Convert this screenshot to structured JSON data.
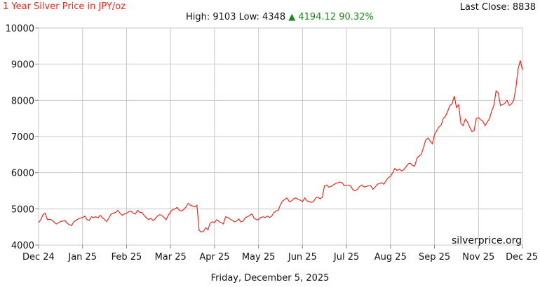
{
  "header": {
    "title": "1 Year Silver Price in JPY/oz",
    "last_close": "Last Close: 8838",
    "high_low": "High: 9103 Low: 4348",
    "change_arrow": "▲",
    "change_text": "4194.12 90.32%"
  },
  "footer": {
    "date": "Friday, December 5, 2025",
    "watermark": "silverprice.org"
  },
  "colors": {
    "line": "#e8281e",
    "title": "#e8281e",
    "change": "#1a8a1a",
    "grid": "#c8c8c8"
  },
  "chart_data": {
    "type": "line",
    "title": "1 Year Silver Price in JPY/oz",
    "xlabel": "",
    "ylabel": "",
    "xlim": [
      0,
      11
    ],
    "ylim": [
      4000,
      10000
    ],
    "yticks": [
      4000,
      5000,
      6000,
      7000,
      8000,
      9000,
      10000
    ],
    "yticks_labels": [
      "4000",
      "5000",
      "6000",
      "7000",
      "8000",
      "9000",
      "10000"
    ],
    "xticks_labels": [
      "Dec 24",
      "Jan 25",
      "Feb 25",
      "Mar 25",
      "Apr 25",
      "May 25",
      "Jun 25",
      "Jul 25",
      "Aug 25",
      "Sep 25",
      "Nov 25",
      "Dec 25"
    ],
    "grid": true,
    "legend": "none",
    "series": [
      {
        "x": [
          0.0,
          0.05,
          0.1,
          0.15,
          0.2,
          0.25,
          0.3,
          0.35,
          0.4,
          0.45,
          0.5,
          0.55,
          0.6,
          0.65,
          0.7,
          0.75,
          0.8,
          0.85,
          0.9,
          0.95,
          1.0,
          1.05,
          1.1,
          1.15,
          1.2,
          1.25,
          1.3,
          1.35,
          1.4,
          1.45,
          1.5,
          1.55,
          1.6,
          1.65,
          1.7,
          1.75,
          1.8,
          1.85,
          1.9,
          1.95,
          2.0,
          2.05,
          2.1,
          2.15,
          2.2,
          2.25,
          2.3,
          2.35,
          2.4,
          2.45,
          2.5,
          2.55,
          2.6,
          2.65,
          2.7,
          2.75,
          2.8,
          2.85,
          2.9,
          2.95,
          3.0,
          3.05,
          3.1,
          3.15,
          3.2,
          3.25,
          3.3,
          3.35,
          3.4,
          3.45,
          3.5,
          3.55,
          3.6,
          3.65,
          3.7,
          3.75,
          3.8,
          3.85,
          3.9,
          3.95,
          4.0,
          4.05,
          4.1,
          4.15,
          4.2,
          4.25,
          4.3,
          4.35,
          4.4,
          4.45,
          4.5,
          4.55,
          4.6,
          4.65,
          4.7,
          4.75,
          4.8,
          4.85,
          4.9,
          4.95,
          5.0,
          5.05,
          5.1,
          5.15,
          5.2,
          5.25,
          5.3,
          5.35,
          5.4,
          5.45,
          5.5,
          5.55,
          5.6,
          5.65,
          5.7,
          5.75,
          5.8,
          5.85,
          5.9,
          5.95,
          6.0,
          6.05,
          6.1,
          6.15,
          6.2,
          6.25,
          6.3,
          6.35,
          6.4,
          6.45,
          6.5,
          6.55,
          6.6,
          6.65,
          6.7,
          6.75,
          6.8,
          6.85,
          6.9,
          6.95,
          7.0,
          7.05,
          7.1,
          7.15,
          7.2,
          7.25,
          7.3,
          7.35,
          7.4,
          7.45,
          7.5,
          7.55,
          7.6,
          7.65,
          7.7,
          7.75,
          7.8,
          7.85,
          7.9,
          7.95,
          8.0,
          8.05,
          8.1,
          8.15,
          8.2,
          8.25,
          8.3,
          8.35,
          8.4,
          8.45,
          8.5,
          8.55,
          8.6,
          8.65,
          8.7,
          8.75,
          8.8,
          8.85,
          8.9,
          8.95,
          9.0,
          9.05,
          9.1,
          9.15,
          9.2,
          9.25,
          9.3,
          9.35,
          9.4,
          9.45,
          9.5,
          9.55,
          9.6,
          9.65,
          9.7,
          9.75,
          9.8,
          9.85,
          9.9,
          9.95,
          10.0,
          10.05,
          10.1,
          10.15,
          10.2,
          10.25,
          10.3,
          10.35,
          10.4,
          10.45,
          10.5,
          10.55,
          10.6,
          10.65,
          10.7,
          10.75,
          10.8,
          10.85,
          10.9,
          10.95,
          11.0
        ],
        "y": [
          4620,
          4700,
          4840,
          4880,
          4700,
          4710,
          4690,
          4640,
          4580,
          4610,
          4650,
          4660,
          4680,
          4600,
          4560,
          4540,
          4640,
          4680,
          4720,
          4750,
          4760,
          4800,
          4700,
          4680,
          4780,
          4760,
          4780,
          4750,
          4820,
          4760,
          4700,
          4650,
          4750,
          4860,
          4880,
          4900,
          4960,
          4880,
          4820,
          4860,
          4880,
          4920,
          4940,
          4880,
          4860,
          4960,
          4900,
          4900,
          4820,
          4750,
          4700,
          4740,
          4680,
          4720,
          4800,
          4840,
          4820,
          4760,
          4700,
          4820,
          4920,
          4980,
          5000,
          5040,
          4960,
          4940,
          4980,
          5050,
          5150,
          5100,
          5080,
          5050,
          5100,
          4400,
          4360,
          4380,
          4480,
          4420,
          4600,
          4640,
          4620,
          4700,
          4650,
          4620,
          4580,
          4780,
          4760,
          4720,
          4680,
          4640,
          4660,
          4720,
          4640,
          4660,
          4760,
          4780,
          4820,
          4860,
          4740,
          4700,
          4700,
          4760,
          4780,
          4760,
          4800,
          4760,
          4800,
          4900,
          4940,
          4960,
          5120,
          5220,
          5260,
          5300,
          5200,
          5220,
          5280,
          5300,
          5260,
          5240,
          5200,
          5300,
          5220,
          5200,
          5180,
          5200,
          5300,
          5320,
          5280,
          5320,
          5640,
          5660,
          5600,
          5620,
          5660,
          5700,
          5720,
          5740,
          5720,
          5640,
          5650,
          5660,
          5620,
          5520,
          5500,
          5540,
          5620,
          5660,
          5600,
          5620,
          5640,
          5640,
          5540,
          5600,
          5680,
          5700,
          5720,
          5680,
          5780,
          5860,
          5900,
          6000,
          6120,
          6060,
          6100,
          6050,
          6080,
          6160,
          6240,
          6260,
          6200,
          6180,
          6400,
          6460,
          6500,
          6700,
          6900,
          6960,
          6880,
          6800,
          7040,
          7160,
          7260,
          7320,
          7500,
          7560,
          7700,
          7860,
          7900,
          8120,
          7800,
          7880,
          7360,
          7300,
          7480,
          7400,
          7260,
          7140,
          7160,
          7500,
          7520,
          7460,
          7420,
          7300,
          7400,
          7500,
          7700,
          7860,
          8260,
          8200,
          7860,
          7880,
          7920,
          8000,
          7860,
          7900,
          8000,
          8340,
          8860,
          9103,
          8838
        ]
      }
    ]
  }
}
